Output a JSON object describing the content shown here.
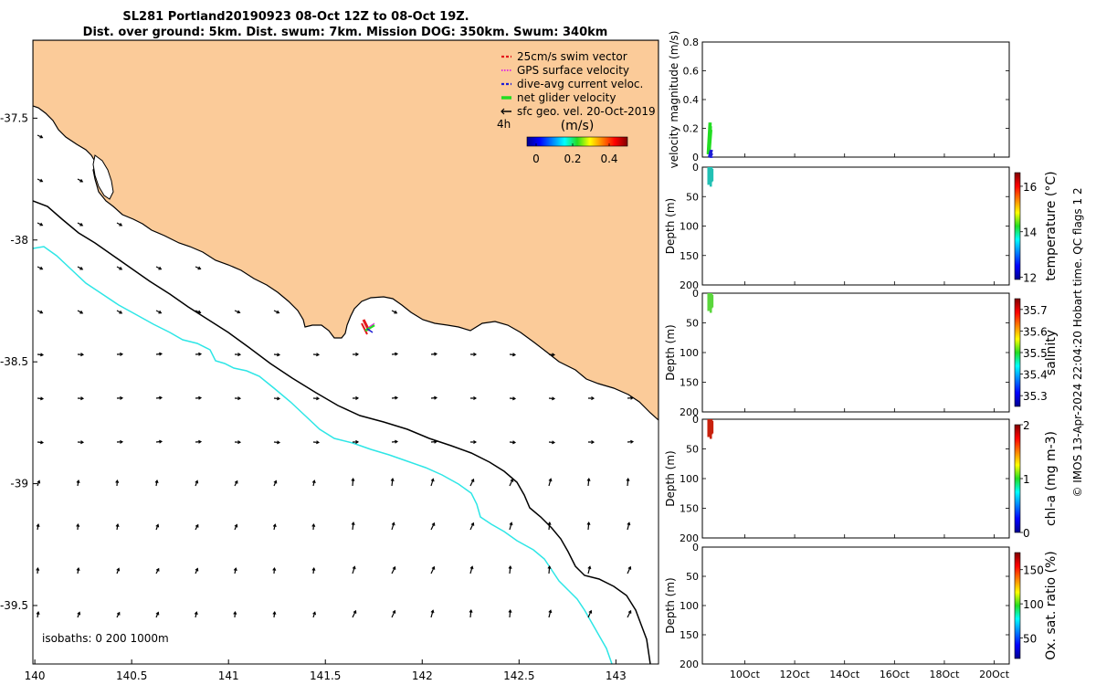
{
  "title": {
    "line1": "SL281 Portland20190923 08-Oct 12Z to 08-Oct 19Z.",
    "line2": "Dist. over ground: 5km. Dist. swum: 7km. Mission DOG: 350km. Swum: 340km"
  },
  "colors": {
    "land": "#fbcb99",
    "swim": "#e41a1c",
    "gps": "#e030e0",
    "dive_avg": "#1d1dd6",
    "net": "#22dd22",
    "isobath_200": "#2ee6e6",
    "isobath_1000": "#000000"
  },
  "map": {
    "isobaths_label": "isobaths: 0   200  1000m",
    "legend": [
      {
        "label": "25cm/s swim vector",
        "color": "#e41a1c",
        "style": "dash"
      },
      {
        "label": "GPS surface velocity",
        "color": "#e030e0",
        "style": "dot"
      },
      {
        "label": "dive-avg current veloc.",
        "color": "#1d1dd6",
        "style": "dash"
      },
      {
        "label": "net glider velocity",
        "color": "#22dd22",
        "style": "solid"
      },
      {
        "label": "sfc geo. vel. 20-Oct-2019",
        "color": "#000000",
        "style": "arrow"
      }
    ],
    "age_label": "4h",
    "colorbar": {
      "label": "(m/s)",
      "ticks": [
        "0",
        "0.2",
        "0.4"
      ],
      "range": [
        -0.05,
        0.5
      ]
    }
  },
  "chart_data": [
    {
      "type": "map",
      "title": "SL281 Portland20190923 08-Oct 12Z to 08-Oct 19Z.",
      "x_ticks": [
        "140",
        "140.5",
        "141",
        "141.5",
        "142",
        "142.5",
        "143"
      ],
      "y_ticks": [
        "-37.5",
        "-38",
        "-38.5",
        "-39",
        "-39.5"
      ],
      "xlim": [
        139.99,
        143.22
      ],
      "ylim": [
        -39.74,
        -37.18
      ],
      "glider_position": [
        141.72,
        -38.38
      ]
    },
    {
      "type": "line",
      "ylabel": "velocity magnitude (m/s)",
      "y_ticks": [
        "0",
        "0.2",
        "0.4",
        "0.6",
        "0.8"
      ],
      "ylim": [
        0,
        0.8
      ],
      "series": [
        {
          "color": "#22dd22",
          "x": [
            8.5,
            8.6
          ],
          "y_range": [
            0.02,
            0.24
          ]
        },
        {
          "color": "#1d1dd6",
          "x": [
            8.55,
            8.65
          ],
          "y_range": [
            0,
            0.05
          ]
        }
      ]
    },
    {
      "type": "heatmap",
      "ylabel": "Depth (m)",
      "y_ticks": [
        "0",
        "50",
        "100",
        "150",
        "200"
      ],
      "ylim": [
        200,
        0
      ],
      "colorbar": {
        "label": "temperature (°C)",
        "ticks": [
          "12",
          "14",
          "16"
        ],
        "range": [
          11.9,
          16.6
        ]
      },
      "data": {
        "depth_range": [
          0,
          30
        ],
        "value": 14.3,
        "color": "#22c0b4"
      }
    },
    {
      "type": "heatmap",
      "ylabel": "Depth (m)",
      "y_ticks": [
        "0",
        "50",
        "100",
        "150",
        "200"
      ],
      "ylim": [
        200,
        0
      ],
      "colorbar": {
        "label": "salinity",
        "ticks": [
          "35.3",
          "35.4",
          "35.5",
          "35.6",
          "35.7"
        ],
        "range": [
          35.25,
          35.75
        ]
      },
      "data": {
        "depth_range": [
          0,
          30
        ],
        "value": 35.45,
        "color": "#5ad63c"
      }
    },
    {
      "type": "heatmap",
      "ylabel": "Depth (m)",
      "y_ticks": [
        "0",
        "50",
        "100",
        "150",
        "200"
      ],
      "ylim": [
        200,
        0
      ],
      "colorbar": {
        "label": "chl-a (mg m-3)",
        "ticks": [
          "0",
          "1",
          "2"
        ],
        "range": [
          0,
          2
        ]
      },
      "data": {
        "depth_range": [
          0,
          30
        ],
        "value": 1.9,
        "color": "#c8200c"
      }
    },
    {
      "type": "heatmap",
      "ylabel": "Depth (m)",
      "y_ticks": [
        "0",
        "50",
        "100",
        "150",
        "200"
      ],
      "x_ticks": [
        "10Oct",
        "12Oct",
        "14Oct",
        "16Oct",
        "18Oct",
        "20Oct"
      ],
      "ylim": [
        200,
        0
      ],
      "colorbar": {
        "label": "Ox. sat. ratio (%)",
        "ticks": [
          "50",
          "100",
          "150"
        ],
        "range": [
          20,
          175
        ]
      },
      "data": null
    }
  ],
  "credit": "© IMOS 13-Apr-2024 22:04:20 Hobart time. QC flags 1  2"
}
